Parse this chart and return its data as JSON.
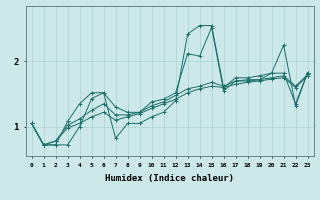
{
  "xlabel": "Humidex (Indice chaleur)",
  "bg_color": "#cce8e8",
  "line_color": "#1a6e6a",
  "grid_color": "#aad0d0",
  "xlim": [
    -0.5,
    23.5
  ],
  "ylim": [
    0.55,
    2.85
  ],
  "yticks": [
    1,
    2
  ],
  "n_points": 24,
  "series": [
    [
      1.05,
      0.72,
      0.72,
      0.72,
      1.0,
      1.43,
      1.52,
      0.82,
      1.05,
      1.05,
      1.15,
      1.22,
      1.4,
      2.42,
      2.55,
      2.55,
      1.6,
      1.75,
      1.75,
      1.78,
      1.82,
      2.25,
      1.32,
      1.83
    ],
    [
      1.05,
      0.72,
      0.72,
      1.08,
      1.35,
      1.52,
      1.52,
      1.3,
      1.22,
      1.22,
      1.38,
      1.42,
      1.52,
      2.12,
      2.08,
      2.52,
      1.55,
      1.7,
      1.72,
      1.72,
      1.82,
      1.82,
      1.35,
      1.83
    ],
    [
      1.05,
      0.72,
      0.78,
      1.02,
      1.12,
      1.25,
      1.35,
      1.18,
      1.18,
      1.22,
      1.32,
      1.38,
      1.48,
      1.58,
      1.62,
      1.68,
      1.62,
      1.7,
      1.7,
      1.72,
      1.75,
      1.78,
      1.62,
      1.8
    ],
    [
      1.05,
      0.72,
      0.78,
      0.98,
      1.05,
      1.15,
      1.22,
      1.1,
      1.15,
      1.2,
      1.28,
      1.35,
      1.42,
      1.52,
      1.58,
      1.62,
      1.6,
      1.65,
      1.68,
      1.7,
      1.73,
      1.75,
      1.6,
      1.78
    ]
  ]
}
